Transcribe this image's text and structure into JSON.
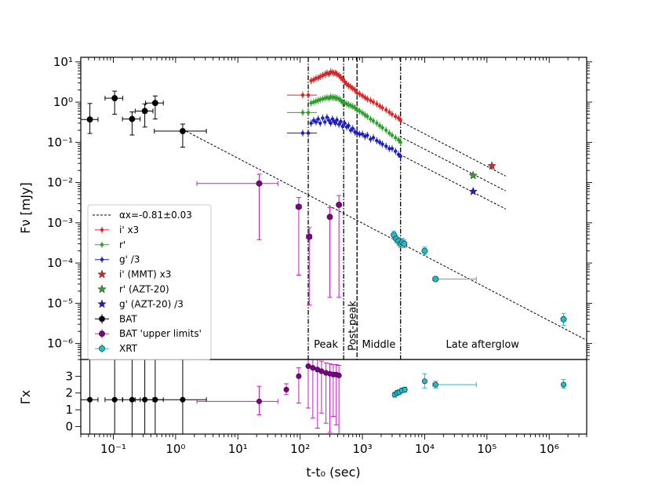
{
  "chart_data": [
    {
      "type": "scatter",
      "panel": "flux",
      "title": "",
      "xlabel": "t-t₀ (sec)",
      "ylabel": "Fν [mJy]",
      "xscale": "log",
      "yscale": "log",
      "xlim": [
        0.03,
        4000000
      ],
      "ylim": [
        4e-07,
        13
      ],
      "x_tick_labels": [
        "10⁻¹",
        "10⁰",
        "10¹",
        "10²",
        "10³",
        "10⁴",
        "10⁵",
        "10⁶"
      ],
      "y_tick_labels": [
        "10⁻⁶",
        "10⁻⁵",
        "10⁻⁴",
        "10⁻³",
        "10⁻²",
        "10⁻¹",
        "10⁰",
        "10¹"
      ],
      "legend_position": "left",
      "legend": [
        {
          "label": "αx=-0.81±0.03",
          "color": "#000000",
          "marker": "dashed"
        },
        {
          "label": "i' x3",
          "color": "#d62728",
          "marker": "dot"
        },
        {
          "label": "r'",
          "color": "#2ca02c",
          "marker": "dot"
        },
        {
          "label": "g' /3",
          "color": "#1f1fbf",
          "marker": "dot"
        },
        {
          "label": "i' (MMT) x3",
          "color": "#d62728",
          "marker": "star"
        },
        {
          "label": "r' (AZT-20)",
          "color": "#2ca02c",
          "marker": "star"
        },
        {
          "label": "g' (AZT-20) /3",
          "color": "#1f1fbf",
          "marker": "star"
        },
        {
          "label": "BAT",
          "color": "#000000",
          "marker": "circle"
        },
        {
          "label": "BAT 'upper limits'",
          "color": "#c020c0",
          "marker": "circle"
        },
        {
          "label": "XRT",
          "color": "#20c0c0",
          "marker": "circle"
        }
      ],
      "phase_boundaries": [
        135,
        500,
        820,
        4100
      ],
      "regions": [
        "Peak",
        "Post-peak",
        "Middle",
        "Late afterglow"
      ],
      "model_lines": [
        {
          "x": [
            1.3,
            4000000
          ],
          "y": [
            0.21,
            1.2e-06
          ]
        },
        {
          "x": [
            4000,
            200000
          ],
          "y": [
            0.34,
            0.0145
          ]
        },
        {
          "x": [
            4000,
            200000
          ],
          "y": [
            0.14,
            0.0062
          ]
        },
        {
          "x": [
            4000,
            200000
          ],
          "y": [
            0.05,
            0.0022
          ]
        }
      ],
      "series": [
        {
          "name": "i' x3",
          "color": "#d62728",
          "marker": "dot",
          "x": [
            110,
            135,
            150,
            165,
            180,
            195,
            210,
            230,
            250,
            270,
            290,
            310,
            330,
            350,
            370,
            390,
            420,
            450,
            480,
            520,
            560,
            600,
            650,
            700,
            760,
            820,
            900,
            1000,
            1100,
            1200,
            1350,
            1500,
            1700,
            1900,
            2100,
            2400,
            2700,
            3000,
            3400,
            3800,
            4100
          ],
          "y": [
            1.5,
            1.5,
            3.4,
            3.6,
            3.9,
            4.0,
            4.3,
            4.6,
            4.9,
            5.3,
            5.0,
            5.6,
            5.5,
            5.2,
            5.3,
            5.0,
            4.6,
            4.1,
            3.7,
            3.2,
            2.8,
            2.6,
            2.4,
            2.2,
            2.0,
            1.7,
            1.6,
            1.45,
            1.3,
            1.2,
            1.1,
            1.0,
            0.9,
            0.8,
            0.72,
            0.64,
            0.56,
            0.5,
            0.44,
            0.4,
            0.36
          ]
        },
        {
          "name": "r'",
          "color": "#2ca02c",
          "marker": "dot",
          "x": [
            110,
            135,
            150,
            165,
            180,
            195,
            210,
            230,
            250,
            270,
            290,
            310,
            330,
            350,
            370,
            390,
            420,
            450,
            480,
            520,
            560,
            600,
            650,
            700,
            760,
            820,
            900,
            1000,
            1100,
            1200,
            1350,
            1500,
            1700,
            1900,
            2100,
            2400,
            2700,
            3000,
            3400,
            3800,
            4100
          ],
          "y": [
            0.55,
            0.55,
            0.95,
            1.0,
            1.05,
            1.1,
            1.15,
            1.2,
            1.25,
            1.3,
            1.25,
            1.35,
            1.3,
            1.3,
            1.28,
            1.25,
            1.2,
            1.1,
            1.0,
            0.95,
            0.9,
            0.86,
            0.82,
            0.78,
            0.72,
            0.65,
            0.6,
            0.54,
            0.48,
            0.44,
            0.38,
            0.34,
            0.3,
            0.26,
            0.23,
            0.2,
            0.17,
            0.15,
            0.13,
            0.115,
            0.1
          ]
        },
        {
          "name": "g' /3",
          "color": "#1f1fbf",
          "marker": "dot",
          "x": [
            110,
            135,
            150,
            165,
            180,
            195,
            210,
            230,
            250,
            270,
            290,
            310,
            330,
            350,
            370,
            390,
            420,
            450,
            480,
            520,
            560,
            600,
            650,
            700,
            760,
            820,
            900,
            1000,
            1100,
            1200,
            1350,
            1500,
            1700,
            1900,
            2100,
            2400,
            2700,
            3000,
            3400,
            3800,
            4100
          ],
          "y": [
            0.17,
            0.17,
            0.3,
            0.35,
            0.32,
            0.38,
            0.3,
            0.4,
            0.32,
            0.42,
            0.35,
            0.3,
            0.38,
            0.33,
            0.3,
            0.36,
            0.28,
            0.33,
            0.25,
            0.3,
            0.24,
            0.26,
            0.2,
            0.22,
            0.18,
            0.17,
            0.16,
            0.16,
            0.14,
            0.15,
            0.12,
            0.13,
            0.11,
            0.1,
            0.09,
            0.08,
            0.07,
            0.07,
            0.06,
            0.05,
            0.045
          ]
        },
        {
          "name": "i' (MMT) x3",
          "color": "#d62728",
          "marker": "star",
          "x": [
            120000
          ],
          "y": [
            0.026
          ]
        },
        {
          "name": "r' (AZT-20)",
          "color": "#2ca02c",
          "marker": "star",
          "x": [
            60000
          ],
          "y": [
            0.015
          ]
        },
        {
          "name": "g' (AZT-20) /3",
          "color": "#1f1fbf",
          "marker": "star",
          "x": [
            60000
          ],
          "y": [
            0.006
          ]
        },
        {
          "name": "BAT",
          "color": "#000000",
          "marker": "circle",
          "x": [
            0.042,
            0.105,
            0.2,
            0.32,
            0.47,
            1.3
          ],
          "y": [
            0.37,
            1.25,
            0.38,
            0.6,
            0.95,
            0.19
          ]
        },
        {
          "name": "BAT 'upper limits'",
          "color": "#c020c0",
          "marker": "circle",
          "x": [
            22,
            95,
            140,
            300,
            420
          ],
          "y": [
            0.0095,
            0.0025,
            0.00045,
            0.0014,
            0.0028
          ]
        },
        {
          "name": "XRT",
          "color": "#20c0c0",
          "marker": "circle",
          "x": [
            3200,
            3500,
            3800,
            4100,
            4400,
            4700,
            10000,
            15000,
            1700000
          ],
          "y": [
            0.0005,
            0.0004,
            0.00035,
            0.0003,
            0.00033,
            0.0003,
            0.0002,
            4e-05,
            4e-06
          ]
        }
      ]
    },
    {
      "type": "scatter",
      "panel": "photon_index",
      "xlabel": "t-t₀ (sec)",
      "ylabel": "Γx",
      "xscale": "log",
      "xlim": [
        0.03,
        4000000
      ],
      "ylim": [
        -0.45,
        4.0
      ],
      "y_tick_labels": [
        "0",
        "1",
        "2",
        "3"
      ],
      "series": [
        {
          "name": "BAT",
          "color": "#000000",
          "marker": "circle",
          "x": [
            0.042,
            0.105,
            0.2,
            0.32,
            0.47,
            1.3
          ],
          "y": [
            1.6,
            1.6,
            1.6,
            1.6,
            1.6,
            1.6
          ]
        },
        {
          "name": "BAT 'upper limits'",
          "color": "#c020c0",
          "marker": "circle",
          "x": [
            22,
            60,
            95,
            135,
            160,
            190,
            220,
            260,
            300,
            340,
            380,
            420
          ],
          "y": [
            1.5,
            2.2,
            3.0,
            3.6,
            3.5,
            3.4,
            3.3,
            3.2,
            3.15,
            3.1,
            3.1,
            3.05
          ]
        },
        {
          "name": "XRT",
          "color": "#20c0c0",
          "marker": "circle",
          "x": [
            3300,
            3600,
            3900,
            4300,
            4800,
            10000,
            15000,
            1700000
          ],
          "y": [
            1.9,
            2.0,
            2.05,
            2.15,
            2.2,
            2.7,
            2.5,
            2.5
          ]
        }
      ]
    }
  ]
}
